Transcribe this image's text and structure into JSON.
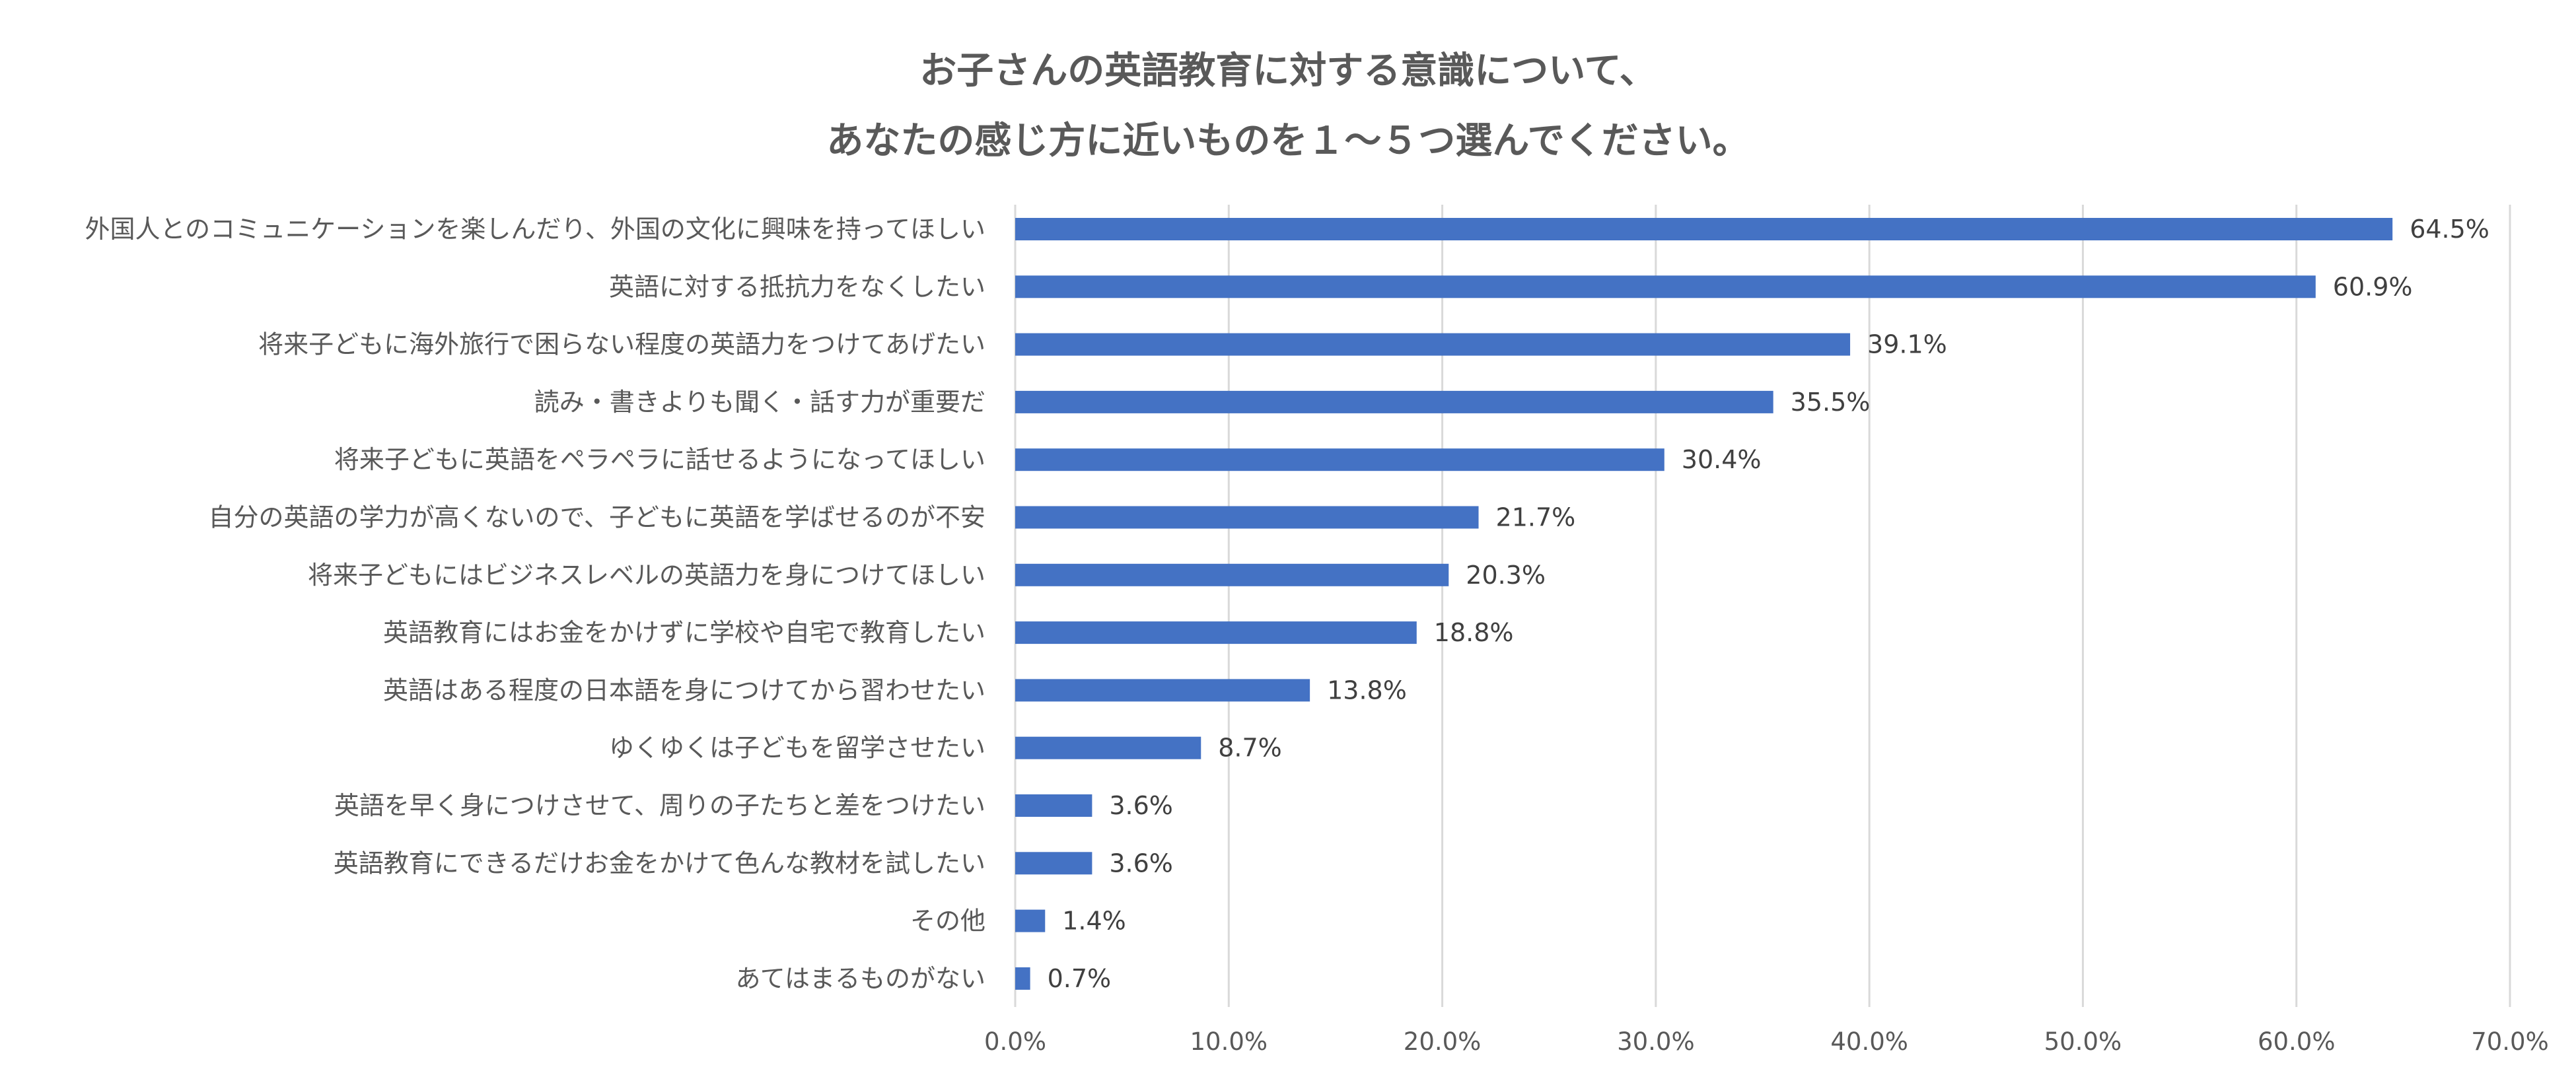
{
  "chart_data": {
    "type": "bar",
    "orientation": "horizontal",
    "title_lines": [
      "お子さんの英語教育に対する意識について、",
      "あなたの感じ方に近いものを１～５つ選んでください。"
    ],
    "categories": [
      "外国人とのコミュニケーションを楽しんだり、外国の文化に興味を持ってほしい",
      "英語に対する抵抗力をなくしたい",
      "将来子どもに海外旅行で困らない程度の英語力をつけてあげたい",
      "読み・書きよりも聞く・話す力が重要だ",
      "将来子どもに英語をペラペラに話せるようになってほしい",
      "自分の英語の学力が高くないので、子どもに英語を学ばせるのが不安",
      "将来子どもにはビジネスレベルの英語力を身につけてほしい",
      "英語教育にはお金をかけずに学校や自宅で教育したい",
      "英語はある程度の日本語を身につけてから習わせたい",
      "ゆくゆくは子どもを留学させたい",
      "英語を早く身につけさせて、周りの子たちと差をつけたい",
      "英語教育にできるだけお金をかけて色んな教材を試したい",
      "その他",
      "あてはまるものがない"
    ],
    "values": [
      64.5,
      60.9,
      39.1,
      35.5,
      30.4,
      21.7,
      20.3,
      18.8,
      13.8,
      8.7,
      3.6,
      3.6,
      1.4,
      0.7
    ],
    "value_labels": [
      "64.5%",
      "60.9%",
      "39.1%",
      "35.5%",
      "30.4%",
      "21.7%",
      "20.3%",
      "18.8%",
      "13.8%",
      "8.7%",
      "3.6%",
      "3.6%",
      "1.4%",
      "0.7%"
    ],
    "x_ticks": [
      "0.0%",
      "10.0%",
      "20.0%",
      "30.0%",
      "40.0%",
      "50.0%",
      "60.0%",
      "70.0%"
    ],
    "xlim": [
      0,
      70
    ],
    "grid": true,
    "legend": "none",
    "bar_color": "#4472C4",
    "grid_color": "#D9D9D9"
  }
}
